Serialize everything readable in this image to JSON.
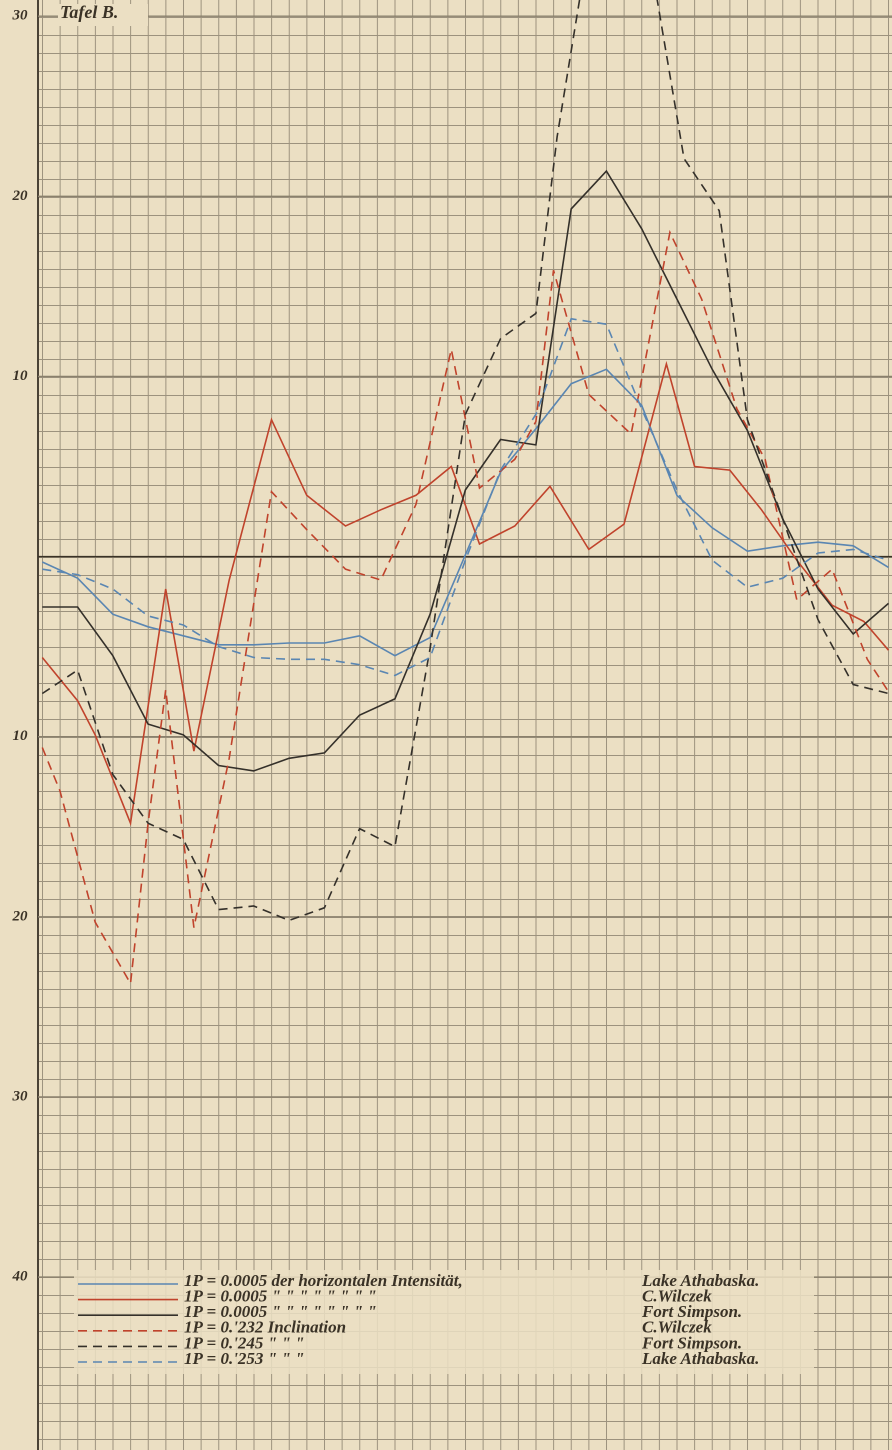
{
  "chart_data": {
    "type": "line",
    "title": "Tafel B.",
    "xlim": [
      -1.2,
      24.1
    ],
    "ylim": [
      -49.6,
      30.9
    ],
    "yticks": [
      30,
      20,
      10,
      {
        "value": -10,
        "label": "10"
      },
      {
        "value": -20,
        "label": "20"
      },
      {
        "value": -30,
        "label": "30"
      },
      {
        "value": -40,
        "label": "40"
      }
    ],
    "grid": true,
    "series": [
      {
        "name": "Lake Athabaska.",
        "legend_text": "1P = 0.0005 der horizontalen Intensität,",
        "color": "#5a86b2",
        "dashed": false,
        "x": [
          0,
          1,
          2,
          3,
          4,
          5,
          6,
          7,
          8,
          9,
          10,
          11,
          12,
          13,
          14,
          15,
          16,
          17,
          18,
          19,
          20,
          21,
          22,
          23,
          24
        ],
        "values": [
          -0.3,
          -1.2,
          -3.2,
          -3.9,
          -4.4,
          -4.9,
          -4.9,
          -4.8,
          -4.8,
          -4.4,
          -5.5,
          -4.5,
          0.1,
          4.7,
          7.1,
          9.6,
          10.4,
          8.4,
          3.4,
          1.6,
          0.3,
          0.6,
          0.8,
          0.6,
          -0.6
        ]
      },
      {
        "name": "C.Wilczek",
        "legend_text": "1P = 0.0005 \" \" \" \" \" \" \" \"",
        "color": "#c0432c",
        "dashed": false,
        "x": [
          0,
          1,
          1.5,
          2.5,
          3.5,
          4.3,
          5.3,
          6.5,
          7.5,
          8.6,
          9.6,
          10.6,
          11.6,
          12.4,
          13.4,
          14.4,
          15.5,
          16.5,
          17.7,
          18.5,
          19.5,
          20.4,
          21.4,
          22.4,
          23.3,
          24
        ],
        "values": [
          -5.6,
          -8,
          -9.9,
          -14.8,
          -1.8,
          -10.8,
          -1.3,
          7.6,
          3.4,
          1.7,
          2.6,
          3.4,
          5,
          0.7,
          1.7,
          3.9,
          0.4,
          1.8,
          10.7,
          5,
          4.8,
          2.6,
          -0.2,
          -2.7,
          -3.6,
          -5.2
        ]
      },
      {
        "name": "Fort Simpson.",
        "legend_text": "1P = 0.0005 \" \" \" \" \" \" \" \"",
        "color": "#34302a",
        "dashed": false,
        "x": [
          0,
          1,
          2,
          3,
          4,
          5,
          6,
          7,
          8,
          9,
          10,
          11,
          12,
          13,
          14,
          15,
          16,
          17,
          18,
          19,
          20,
          21,
          22,
          23,
          24
        ],
        "values": [
          -2.8,
          -2.8,
          -5.5,
          -9.3,
          -9.9,
          -11.6,
          -11.9,
          -11.2,
          -10.9,
          -8.8,
          -7.9,
          -3.2,
          3.7,
          6.5,
          6.2,
          19.3,
          21.4,
          18.2,
          14.3,
          10.4,
          7,
          2.1,
          -1.8,
          -4.3,
          -2.6
        ]
      },
      {
        "name": "C.Wilczek",
        "legend_text": "1P = 0.'232 Inclination",
        "color": "#c0432c",
        "dashed": true,
        "x": [
          0,
          0.5,
          1.5,
          2.5,
          3,
          3.5,
          4.3,
          5.3,
          6.5,
          7.5,
          8.6,
          9.6,
          10.6,
          11.6,
          12.4,
          13.4,
          14,
          14.5,
          15.5,
          16.7,
          17.8,
          18.7,
          19.7,
          20.5,
          21.4,
          22.4,
          23.4,
          24
        ],
        "values": [
          -10.6,
          -13,
          -20.3,
          -23.7,
          -14.8,
          -7.4,
          -20.6,
          -11.2,
          3.6,
          1.5,
          -0.7,
          -1.3,
          2.9,
          11.5,
          3.8,
          5.4,
          7.5,
          15.9,
          9,
          6.8,
          18,
          14.3,
          8.2,
          5.4,
          -2.4,
          -0.7,
          -5.7,
          -7.5
        ]
      },
      {
        "name": "Fort Simpson.",
        "legend_text": "1P = 0.'245 \" \" \"",
        "color": "#34302a",
        "dashed": true,
        "x": [
          0,
          1,
          2,
          3,
          4,
          5,
          6,
          7,
          8,
          9,
          10,
          11,
          12,
          13,
          14,
          14.6,
          16,
          17,
          18.2,
          19.2,
          20,
          21,
          22,
          23,
          24
        ],
        "values": [
          -7.6,
          -6.3,
          -12.1,
          -14.8,
          -15.7,
          -19.6,
          -19.4,
          -20.2,
          -19.5,
          -15.1,
          -16.1,
          -5.1,
          7.9,
          12.1,
          13.5,
          23.3,
          40,
          36,
          22.1,
          19.2,
          7.6,
          2.1,
          -3.5,
          -7.1,
          -7.6
        ]
      },
      {
        "name": "Lake Athabaska.",
        "legend_text": "1P = 0.'253 \" \" \"",
        "color": "#5a86b2",
        "dashed": true,
        "x": [
          0,
          1,
          2,
          3,
          4,
          5,
          6,
          7,
          8,
          9,
          10,
          11,
          12,
          13,
          14,
          15,
          16,
          17,
          18,
          19,
          20,
          21,
          22,
          23,
          24
        ],
        "values": [
          -0.7,
          -1,
          -1.8,
          -3.3,
          -3.8,
          -5,
          -5.6,
          -5.7,
          -5.7,
          -6,
          -6.6,
          -5.6,
          -0.2,
          4.8,
          7.9,
          13.2,
          12.9,
          8.2,
          3.7,
          -0.2,
          -1.7,
          -1.2,
          0.2,
          0.4,
          -0.2
        ]
      }
    ]
  }
}
